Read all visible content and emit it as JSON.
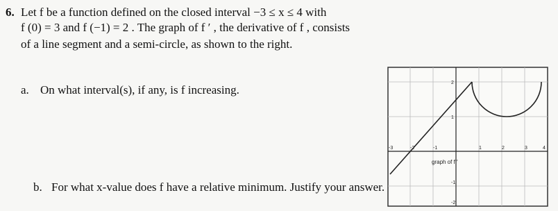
{
  "problem": {
    "number": "6.",
    "intro": [
      "Let f be a function defined on the closed interval −3 ≤ x ≤ 4 with",
      "f (0) = 3 and f (−1) = 2 . The graph of f ′ , the derivative of f , consists",
      "of a line segment and a semi-circle, as shown to the right."
    ],
    "parts": [
      {
        "label": "a.",
        "text": "On what interval(s), if any, is f increasing."
      },
      {
        "label": "b.",
        "text": "For what x-value does f have a relative minimum. Justify your answer."
      }
    ],
    "graph": {
      "caption": "graph of f ′",
      "x_labels": [
        "-3",
        "-2",
        "-1",
        "1",
        "2",
        "3",
        "4"
      ],
      "y_labels": [
        "2",
        "1",
        "-1",
        "-2"
      ]
    }
  }
}
